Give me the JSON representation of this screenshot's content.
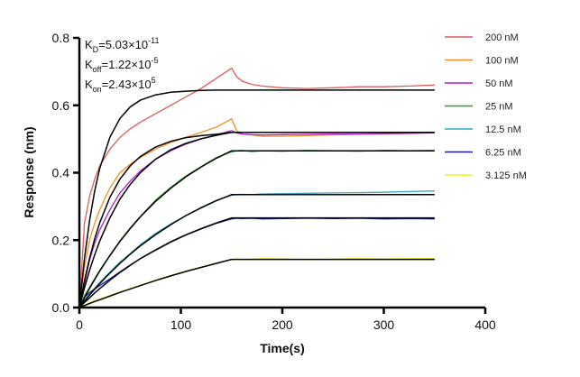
{
  "chart_data": {
    "type": "line",
    "xlabel": "Time(s)",
    "ylabel": "Response (nm)",
    "xlim": [
      0,
      400
    ],
    "ylim": [
      0,
      0.8
    ],
    "xticks": [
      "0",
      "100",
      "200",
      "300",
      "400"
    ],
    "yticks": [
      "0.0",
      "0.2",
      "0.4",
      "0.6",
      "0.8"
    ],
    "grid": false,
    "legend_position": "right",
    "annotations": [
      {
        "k": "K",
        "sub": "D",
        "eq": "=5.03×10",
        "sup": "-11"
      },
      {
        "k": "K",
        "sub": "off",
        "eq": "=1.22×10",
        "sup": "-5"
      },
      {
        "k": "K",
        "sub": "on",
        "eq": "=2.43×10",
        "sup": "5"
      }
    ],
    "x": [
      0,
      5,
      10,
      15,
      20,
      30,
      40,
      50,
      60,
      75,
      90,
      105,
      120,
      135,
      150,
      155,
      160,
      170,
      180,
      200,
      225,
      250,
      275,
      300,
      325,
      350
    ],
    "series": [
      {
        "name": "200 nM",
        "color": "#e05a5a",
        "values": [
          0,
          0.25,
          0.33,
          0.38,
          0.42,
          0.47,
          0.505,
          0.53,
          0.55,
          0.575,
          0.6,
          0.625,
          0.65,
          0.68,
          0.71,
          0.685,
          0.672,
          0.662,
          0.657,
          0.652,
          0.65,
          0.652,
          0.655,
          0.655,
          0.657,
          0.66
        ],
        "fit": [
          0,
          0.145,
          0.258,
          0.345,
          0.412,
          0.505,
          0.561,
          0.595,
          0.615,
          0.631,
          0.639,
          0.642,
          0.644,
          0.645,
          0.645,
          0.645,
          0.645,
          0.645,
          0.645,
          0.645,
          0.645,
          0.645,
          0.645,
          0.645,
          0.645,
          0.645
        ]
      },
      {
        "name": "100 nM",
        "color": "#f0902a",
        "values": [
          0,
          0.12,
          0.2,
          0.25,
          0.29,
          0.355,
          0.4,
          0.425,
          0.445,
          0.47,
          0.49,
          0.505,
          0.52,
          0.535,
          0.56,
          0.525,
          0.515,
          0.512,
          0.508,
          0.508,
          0.51,
          0.512,
          0.514,
          0.515,
          0.517,
          0.52
        ],
        "fit": [
          0,
          0.079,
          0.146,
          0.203,
          0.251,
          0.327,
          0.381,
          0.42,
          0.448,
          0.476,
          0.493,
          0.504,
          0.51,
          0.514,
          0.52,
          0.52,
          0.52,
          0.52,
          0.52,
          0.52,
          0.52,
          0.52,
          0.52,
          0.52,
          0.52,
          0.52
        ]
      },
      {
        "name": "50 nM",
        "color": "#b020d0",
        "values": [
          0,
          0.07,
          0.14,
          0.19,
          0.23,
          0.29,
          0.34,
          0.375,
          0.405,
          0.44,
          0.465,
          0.485,
          0.5,
          0.512,
          0.525,
          0.518,
          0.515,
          0.513,
          0.512,
          0.513,
          0.514,
          0.515,
          0.515,
          0.516,
          0.517,
          0.518
        ],
        "fit": [
          0,
          0.058,
          0.11,
          0.156,
          0.197,
          0.266,
          0.322,
          0.365,
          0.4,
          0.44,
          0.468,
          0.487,
          0.501,
          0.511,
          0.52,
          0.52,
          0.52,
          0.52,
          0.52,
          0.52,
          0.52,
          0.52,
          0.52,
          0.52,
          0.52,
          0.52
        ]
      },
      {
        "name": "25 nM",
        "color": "#2aa02a",
        "values": [
          0,
          0.035,
          0.06,
          0.085,
          0.11,
          0.155,
          0.198,
          0.236,
          0.27,
          0.318,
          0.356,
          0.39,
          0.418,
          0.445,
          0.462,
          0.465,
          0.466,
          0.463,
          0.465,
          0.464,
          0.466,
          0.465,
          0.464,
          0.466,
          0.465,
          0.466
        ],
        "fit": [
          0,
          0.029,
          0.057,
          0.083,
          0.108,
          0.154,
          0.196,
          0.234,
          0.269,
          0.315,
          0.354,
          0.388,
          0.417,
          0.443,
          0.465,
          0.465,
          0.465,
          0.465,
          0.465,
          0.465,
          0.465,
          0.465,
          0.465,
          0.465,
          0.465,
          0.465
        ]
      },
      {
        "name": "12.5 nM",
        "color": "#30a8c0",
        "values": [
          0,
          0.022,
          0.04,
          0.057,
          0.074,
          0.105,
          0.135,
          0.16,
          0.186,
          0.22,
          0.248,
          0.272,
          0.297,
          0.318,
          0.333,
          0.335,
          0.336,
          0.335,
          0.337,
          0.338,
          0.339,
          0.34,
          0.341,
          0.342,
          0.344,
          0.346
        ],
        "fit": [
          0,
          0.019,
          0.037,
          0.054,
          0.071,
          0.102,
          0.131,
          0.158,
          0.183,
          0.216,
          0.246,
          0.273,
          0.296,
          0.317,
          0.335,
          0.335,
          0.335,
          0.335,
          0.335,
          0.335,
          0.335,
          0.335,
          0.335,
          0.335,
          0.335,
          0.335
        ]
      },
      {
        "name": "6.25 nM",
        "color": "#1a1a9a",
        "values": [
          0,
          0.03,
          0.045,
          0.055,
          0.065,
          0.085,
          0.106,
          0.126,
          0.145,
          0.17,
          0.194,
          0.215,
          0.233,
          0.25,
          0.263,
          0.265,
          0.264,
          0.265,
          0.263,
          0.264,
          0.265,
          0.264,
          0.265,
          0.263,
          0.264,
          0.263
        ],
        "fit": [
          0,
          0.015,
          0.029,
          0.043,
          0.056,
          0.081,
          0.104,
          0.125,
          0.145,
          0.171,
          0.195,
          0.216,
          0.234,
          0.251,
          0.266,
          0.266,
          0.266,
          0.266,
          0.266,
          0.266,
          0.266,
          0.266,
          0.266,
          0.266,
          0.266,
          0.266
        ]
      },
      {
        "name": "3.125 nM",
        "color": "#f0f020",
        "values": [
          0,
          0.008,
          0.014,
          0.02,
          0.025,
          0.036,
          0.046,
          0.056,
          0.066,
          0.081,
          0.095,
          0.108,
          0.12,
          0.132,
          0.142,
          0.144,
          0.143,
          0.144,
          0.145,
          0.144,
          0.143,
          0.144,
          0.145,
          0.144,
          0.145,
          0.146
        ],
        "fit": [
          0,
          0.006,
          0.012,
          0.018,
          0.023,
          0.034,
          0.045,
          0.055,
          0.065,
          0.08,
          0.094,
          0.107,
          0.119,
          0.131,
          0.143,
          0.143,
          0.143,
          0.143,
          0.143,
          0.143,
          0.143,
          0.143,
          0.143,
          0.143,
          0.143,
          0.143
        ]
      }
    ],
    "fit_color": "#000000"
  }
}
